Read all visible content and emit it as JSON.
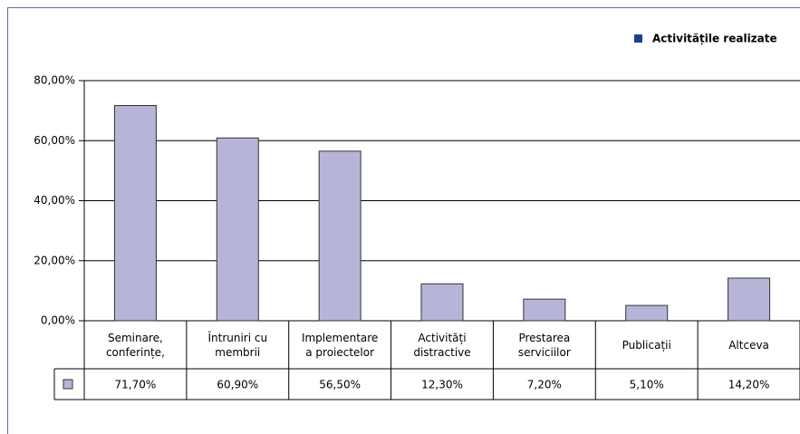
{
  "chart_data": {
    "type": "bar",
    "categories": [
      [
        "Seminare,",
        "conferințe,"
      ],
      [
        "Întruniri cu",
        "membrii"
      ],
      [
        "Implementare",
        "a proiectelor"
      ],
      [
        "Activități",
        "distractive"
      ],
      [
        "Prestarea",
        "serviciilor"
      ],
      [
        "Publicații"
      ],
      [
        "Altceva"
      ]
    ],
    "series": [
      {
        "name": "Activitățile realizate",
        "color": "#b6b5d8",
        "legend_color": "#1f3f93",
        "values": [
          71.7,
          60.9,
          56.5,
          12.3,
          7.2,
          5.1,
          14.2
        ],
        "value_labels": [
          "71,70%",
          "60,90%",
          "56,50%",
          "12,30%",
          "7,20%",
          "5,10%",
          "14,20%"
        ]
      }
    ],
    "ylim": [
      0,
      80
    ],
    "yticks": [
      {
        "value": 0,
        "label": "0,00%"
      },
      {
        "value": 20,
        "label": "20,00%"
      },
      {
        "value": 40,
        "label": "40,00%"
      },
      {
        "value": 60,
        "label": "60,00%"
      },
      {
        "value": 80,
        "label": "80,00%"
      }
    ],
    "grid": true,
    "legend": "top-right"
  }
}
